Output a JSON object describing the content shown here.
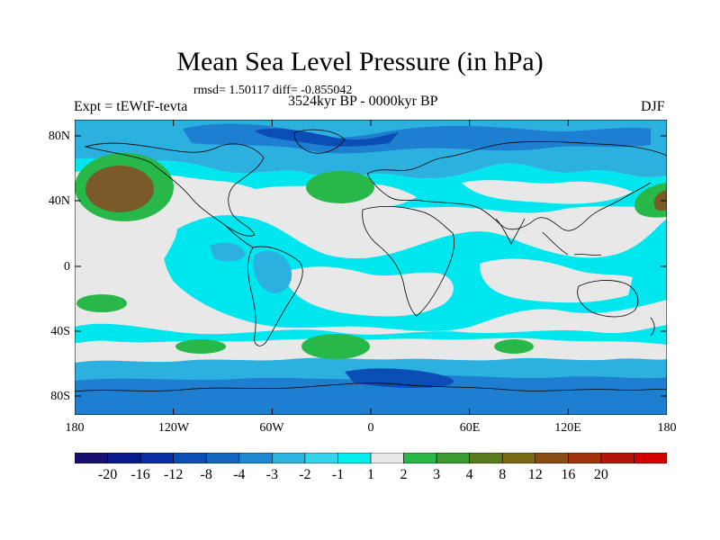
{
  "title": "Mean Sea Level Pressure (in hPa)",
  "stats": "rmsd= 1.50117 diff= -0.855042",
  "experiment": "Expt = tEWtF-tevta",
  "period": "3524kyr BP - 0000kyr BP",
  "season": "DJF",
  "lat_ticks": [
    "80N",
    "40N",
    "0",
    "40S",
    "80S"
  ],
  "lon_ticks": [
    "180",
    "120W",
    "60W",
    "0",
    "60E",
    "120E",
    "180"
  ],
  "colorbar": {
    "labels": [
      "-20",
      "-16",
      "-12",
      "-8",
      "-4",
      "-3",
      "-2",
      "-1",
      "1",
      "2",
      "3",
      "4",
      "8",
      "12",
      "16",
      "20"
    ],
    "colors": [
      "#1a0f6e",
      "#0c1a8f",
      "#0c2fa8",
      "#0a4db5",
      "#1565c0",
      "#1e88d2",
      "#2bb5e0",
      "#33d6e8",
      "#00eeee",
      "#e8e8e8",
      "#28b84a",
      "#3c9a32",
      "#5a7a1e",
      "#7a6a14",
      "#8a4a14",
      "#a0320c",
      "#b4140a",
      "#d40000"
    ]
  },
  "map_colors": {
    "ocean_neutral": "#e8e8e8",
    "cyan": "#00e6ee",
    "light_blue": "#2bb0e0",
    "mid_blue": "#1e7fd0",
    "deep_blue": "#0a4db5",
    "green": "#28b84a",
    "brown": "#7a5a28"
  }
}
